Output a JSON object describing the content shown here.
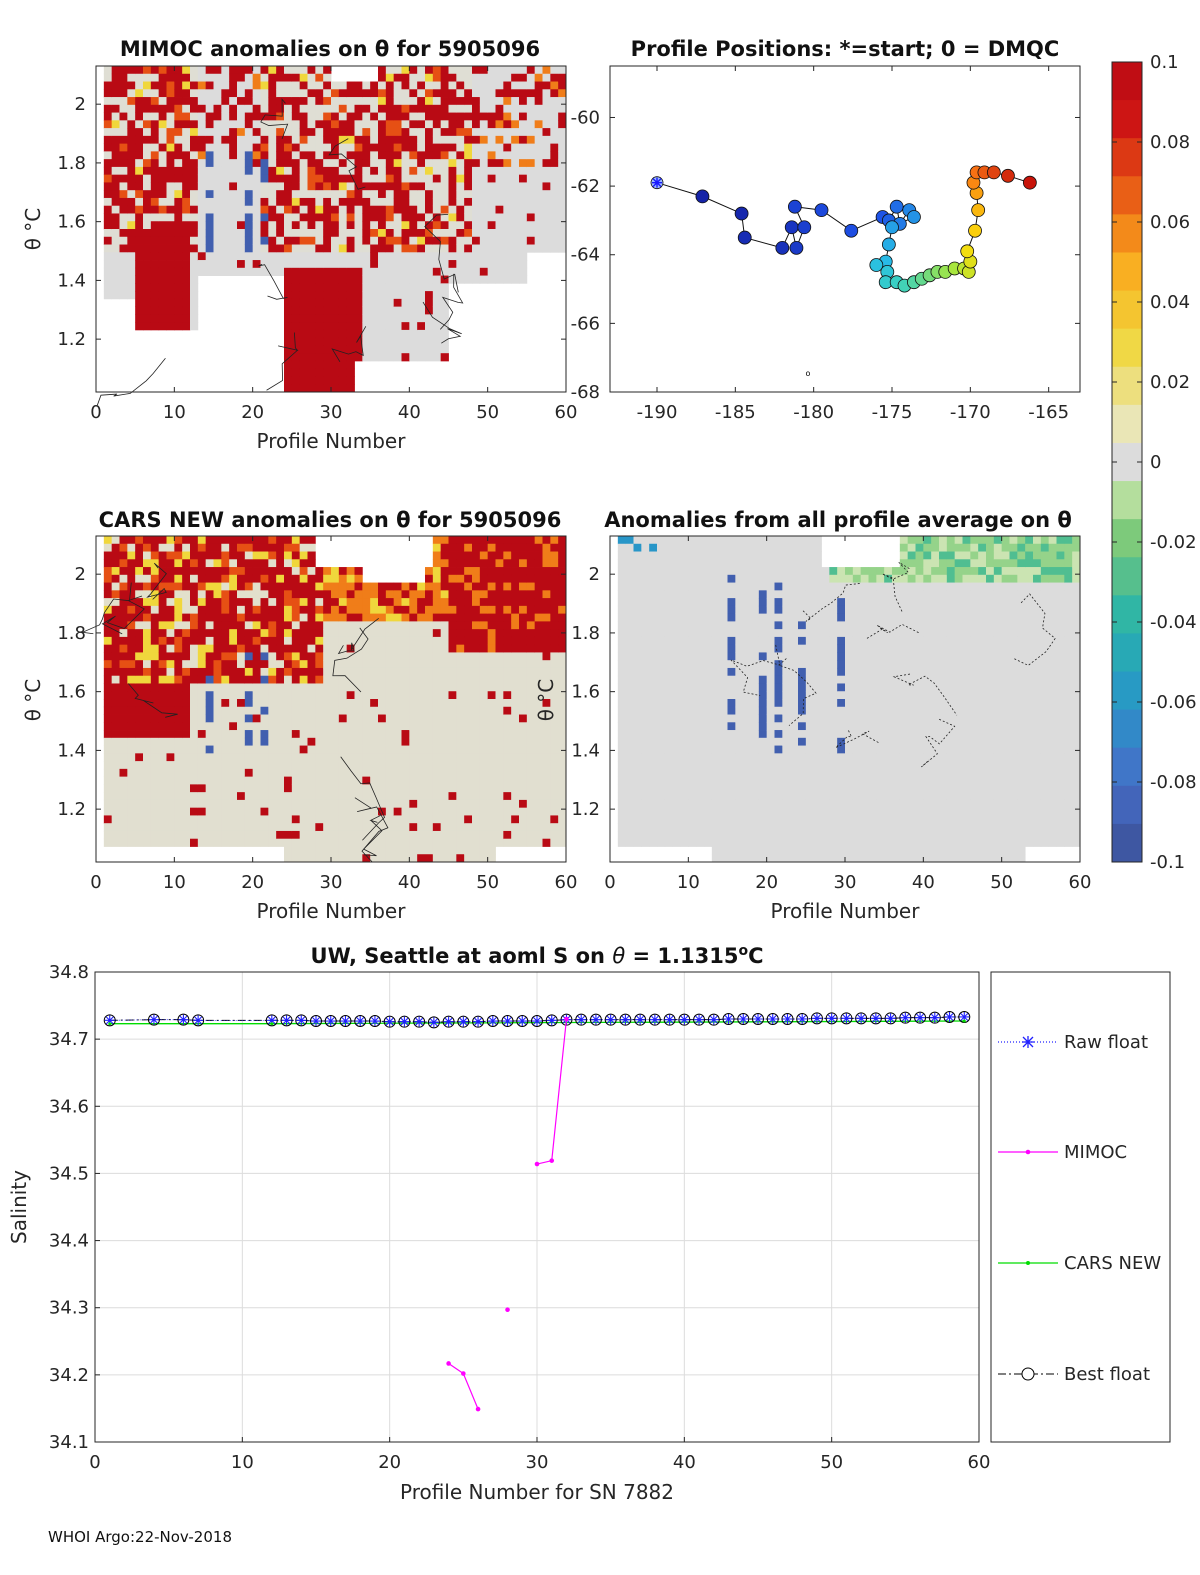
{
  "colors": {
    "background_na": "#ffffff",
    "near_zero": "#dcdcdc",
    "raw_float": "#2020ff",
    "mimoc": "#ff00ff",
    "cars_new": "#00dd00",
    "best_float": "#000000"
  },
  "footer": "WHOI Argo:22-Nov-2018",
  "chart_data": [
    {
      "id": "mimoc_anom",
      "type": "heatmap",
      "title": "MIMOC anomalies on θ  for 5905096",
      "xlabel": "Profile Number",
      "ylabel": "θ °C",
      "xlim": [
        0,
        60
      ],
      "ylim": [
        1.02,
        2.13
      ],
      "xticks": [
        "0",
        "10",
        "20",
        "30",
        "40",
        "50",
        "60"
      ],
      "yticks": [
        "1.2",
        "1.4",
        "1.6",
        "1.8",
        "2"
      ],
      "pattern": "mostly positive anomalies (red, ~+0.1) in upper layers and profiles 5-35, near-zero elsewhere"
    },
    {
      "id": "positions",
      "type": "scatter",
      "title": "Profile Positions: *=start; 0 = DMQC",
      "xlim": [
        -193,
        -163
      ],
      "ylim": [
        -68,
        -58.5
      ],
      "xticks": [
        "-190",
        "-185",
        "-180",
        "-175",
        "-170",
        "-165"
      ],
      "yticks": [
        "-60",
        "-62",
        "-64",
        "-66",
        "-68"
      ],
      "track": [
        [
          -190,
          -61.9
        ],
        [
          -187.1,
          -62.3
        ],
        [
          -184.6,
          -62.8
        ],
        [
          -184.4,
          -63.5
        ],
        [
          -182,
          -63.8
        ],
        [
          -181.4,
          -63.2
        ],
        [
          -181.1,
          -63.8
        ],
        [
          -180.6,
          -63.2
        ],
        [
          -181.2,
          -62.6
        ],
        [
          -179.5,
          -62.7
        ],
        [
          -177.6,
          -63.3
        ],
        [
          -175.6,
          -62.9
        ],
        [
          -175.2,
          -63
        ],
        [
          -174.7,
          -62.6
        ],
        [
          -174.5,
          -63.1
        ],
        [
          -173.9,
          -62.7
        ],
        [
          -173.6,
          -62.9
        ],
        [
          -175,
          -63.2
        ],
        [
          -175.2,
          -63.7
        ],
        [
          -175.4,
          -64.2
        ],
        [
          -176,
          -64.3
        ],
        [
          -175.3,
          -64.5
        ],
        [
          -175.4,
          -64.8
        ],
        [
          -174.7,
          -64.8
        ],
        [
          -174.2,
          -64.9
        ],
        [
          -173.6,
          -64.8
        ],
        [
          -173.1,
          -64.7
        ],
        [
          -172.6,
          -64.6
        ],
        [
          -172.1,
          -64.5
        ],
        [
          -171.6,
          -64.5
        ],
        [
          -171,
          -64.4
        ],
        [
          -170.4,
          -64.4
        ],
        [
          -170.1,
          -64.5
        ],
        [
          -170,
          -64.2
        ],
        [
          -170.2,
          -63.9
        ],
        [
          -169.7,
          -63.3
        ],
        [
          -169.5,
          -62.7
        ],
        [
          -169.6,
          -62.2
        ],
        [
          -169.8,
          -61.9
        ],
        [
          -169.6,
          -61.6
        ],
        [
          -169.1,
          -61.6
        ],
        [
          -168.5,
          -61.6
        ],
        [
          -167.6,
          -61.7
        ],
        [
          -166.2,
          -61.9
        ]
      ],
      "marker_label": "o"
    },
    {
      "id": "cars_anom",
      "type": "heatmap",
      "title": "CARS NEW anomalies on θ for 5905096",
      "xlabel": "Profile Number",
      "ylabel": "θ °C",
      "xlim": [
        0,
        60
      ],
      "ylim": [
        1.02,
        2.13
      ],
      "xticks": [
        "0",
        "10",
        "20",
        "30",
        "40",
        "50",
        "60"
      ],
      "yticks": [
        "1.2",
        "1.4",
        "1.6",
        "1.8",
        "2"
      ],
      "pattern": "positive anomalies (red) in profiles 1-30 upper layers and 45-60 upper layers"
    },
    {
      "id": "avg_anom",
      "type": "heatmap",
      "title": "Anomalies from all profile average on θ",
      "xlabel": "Profile Number",
      "ylabel": "θ °C",
      "xlim": [
        0,
        60
      ],
      "ylim": [
        1.02,
        2.13
      ],
      "xticks": [
        "0",
        "10",
        "20",
        "30",
        "40",
        "50",
        "60"
      ],
      "yticks": [
        "1.2",
        "1.4",
        "1.6",
        "1.8",
        "2"
      ],
      "pattern": "mostly near zero; negative streaks near profiles 15-30; slight negative at top for profiles 28-60"
    },
    {
      "id": "colorbar",
      "type": "colorbar",
      "ticks": [
        "0.1",
        "0.08",
        "0.06",
        "0.04",
        "0.02",
        "0",
        "-0.02",
        "-0.04",
        "-0.06",
        "-0.08",
        "-0.1"
      ],
      "range": [
        -0.1,
        0.1
      ]
    },
    {
      "id": "salinity",
      "type": "line",
      "title": "UW, Seattle at aoml S on θ = 1.1315°C",
      "title_prefix": "UW, Seattle at aoml S on ",
      "title_theta": "θ",
      "title_mid": " = 1.1315",
      "title_deg": "o",
      "title_unit": "C",
      "xlabel": "Profile Number for SN 7882",
      "ylabel": "Salinity",
      "xlim": [
        0,
        60
      ],
      "ylim": [
        34.1,
        34.8
      ],
      "xticks": [
        "0",
        "10",
        "20",
        "30",
        "40",
        "50",
        "60"
      ],
      "yticks": [
        "34.8",
        "34.7",
        "34.6",
        "34.5",
        "34.4",
        "34.3",
        "34.2",
        "34.1"
      ],
      "legend": [
        "Raw float",
        "MIMOC",
        "CARS NEW",
        "Best float"
      ],
      "series": [
        {
          "name": "Raw float",
          "points": [
            [
              1,
              34.728
            ],
            [
              4,
              34.729
            ],
            [
              6,
              34.729
            ],
            [
              7,
              34.728
            ],
            [
              12,
              34.728
            ],
            [
              13,
              34.728
            ],
            [
              14,
              34.728
            ],
            [
              15,
              34.727
            ],
            [
              16,
              34.727
            ],
            [
              17,
              34.727
            ],
            [
              18,
              34.727
            ],
            [
              19,
              34.727
            ],
            [
              20,
              34.726
            ],
            [
              21,
              34.726
            ],
            [
              22,
              34.726
            ],
            [
              23,
              34.725
            ],
            [
              24,
              34.726
            ],
            [
              25,
              34.726
            ],
            [
              26,
              34.726
            ],
            [
              27,
              34.727
            ],
            [
              28,
              34.727
            ],
            [
              29,
              34.727
            ],
            [
              30,
              34.727
            ],
            [
              31,
              34.728
            ],
            [
              32,
              34.729
            ],
            [
              33,
              34.729
            ],
            [
              34,
              34.729
            ],
            [
              35,
              34.729
            ],
            [
              36,
              34.729
            ],
            [
              37,
              34.729
            ],
            [
              38,
              34.729
            ],
            [
              39,
              34.729
            ],
            [
              40,
              34.729
            ],
            [
              41,
              34.729
            ],
            [
              42,
              34.729
            ],
            [
              43,
              34.73
            ],
            [
              44,
              34.73
            ],
            [
              45,
              34.73
            ],
            [
              46,
              34.73
            ],
            [
              47,
              34.73
            ],
            [
              48,
              34.73
            ],
            [
              49,
              34.731
            ],
            [
              50,
              34.731
            ],
            [
              51,
              34.731
            ],
            [
              52,
              34.731
            ],
            [
              53,
              34.731
            ],
            [
              54,
              34.731
            ],
            [
              55,
              34.732
            ],
            [
              56,
              34.732
            ],
            [
              57,
              34.732
            ],
            [
              58,
              34.733
            ],
            [
              59,
              34.733
            ]
          ]
        },
        {
          "name": "MIMOC",
          "segments": [
            [
              [
                24,
                34.217
              ],
              [
                25,
                34.202
              ],
              [
                26,
                34.149
              ]
            ],
            [
              [
                28,
                34.297
              ]
            ],
            [
              [
                30,
                34.514
              ],
              [
                31,
                34.519
              ],
              [
                32,
                34.73
              ]
            ]
          ]
        },
        {
          "name": "CARS NEW",
          "points": [
            [
              1,
              34.723
            ],
            [
              12,
              34.723
            ],
            [
              59,
              34.727
            ]
          ]
        },
        {
          "name": "Best float",
          "same_as": "Raw float"
        }
      ]
    }
  ]
}
